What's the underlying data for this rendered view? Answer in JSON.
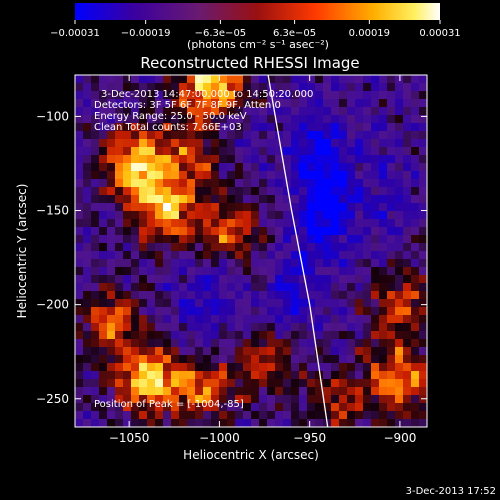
{
  "chart_data": {
    "type": "heatmap",
    "title": "Reconstructed RHESSI Image",
    "xlabel": "Heliocentric X (arcsec)",
    "ylabel": "Heliocentric Y (arcsec)",
    "xlim": [
      -1080,
      -885
    ],
    "ylim": [
      -265,
      -78
    ],
    "x_ticks": [
      -1050,
      -1000,
      -950,
      -900
    ],
    "x_tick_labels": [
      "−1050",
      "−1000",
      "−950",
      "−900"
    ],
    "y_ticks": [
      -100,
      -150,
      -200,
      -250
    ],
    "y_tick_labels": [
      "−100",
      "−150",
      "−200",
      "−250"
    ],
    "colorbar": {
      "ticks": [
        -0.00031,
        -0.00019,
        -6.3e-05,
        6.3e-05,
        0.00019,
        0.00031
      ],
      "tick_labels": [
        "−0.00031",
        "−0.00019",
        "−6.3e−05",
        "6.3e−05",
        "0.00019",
        "0.00031"
      ],
      "unit_label": "(photons cm⁻² s⁻¹ asec⁻²)",
      "colormap": [
        "#0000ff",
        "#3a0090",
        "#5a1a8a",
        "#8c1c1c",
        "#e63a00",
        "#ff9a00",
        "#ffe830",
        "#ffffff"
      ]
    },
    "annotations": [
      "3-Dec-2013 14:47:00.000 to 14:50:20.000",
      "Detectors: 3F 5F 6F 7F 8F 9F, Atten 0",
      "Energy Range: 25.0 - 50.0 keV",
      "Clean    Total counts: 7.66E+03",
      "Position of Peak = [-1004,-85]"
    ],
    "limb_curve": [
      [
        -973,
        -78
      ],
      [
        -960,
        -150
      ],
      [
        -950,
        -200
      ],
      [
        -940,
        -265
      ]
    ],
    "bright_regions": [
      {
        "x": -1045,
        "y": -125,
        "v": 0.9
      },
      {
        "x": -1030,
        "y": -150,
        "v": 0.75
      },
      {
        "x": -1010,
        "y": -120,
        "v": 0.6
      },
      {
        "x": -1004,
        "y": -85,
        "v": 1.0
      },
      {
        "x": -995,
        "y": -160,
        "v": 0.55
      },
      {
        "x": -1060,
        "y": -210,
        "v": 0.6
      },
      {
        "x": -1040,
        "y": -240,
        "v": 0.85
      },
      {
        "x": -1010,
        "y": -245,
        "v": 0.55
      },
      {
        "x": -975,
        "y": -230,
        "v": 0.5
      },
      {
        "x": -900,
        "y": -240,
        "v": 0.7
      },
      {
        "x": -900,
        "y": -200,
        "v": 0.55
      },
      {
        "x": -935,
        "y": -250,
        "v": 0.45
      }
    ],
    "dark_regions": [
      {
        "x": -940,
        "y": -150,
        "v": 1.0
      },
      {
        "x": -945,
        "y": -120,
        "v": 0.8
      },
      {
        "x": -1000,
        "y": -110,
        "v": 0.6
      },
      {
        "x": -1010,
        "y": -200,
        "v": 0.5
      },
      {
        "x": -960,
        "y": -195,
        "v": 0.6
      },
      {
        "x": -905,
        "y": -140,
        "v": 0.4
      }
    ]
  },
  "timestamp": "3-Dec-2013 17:52"
}
